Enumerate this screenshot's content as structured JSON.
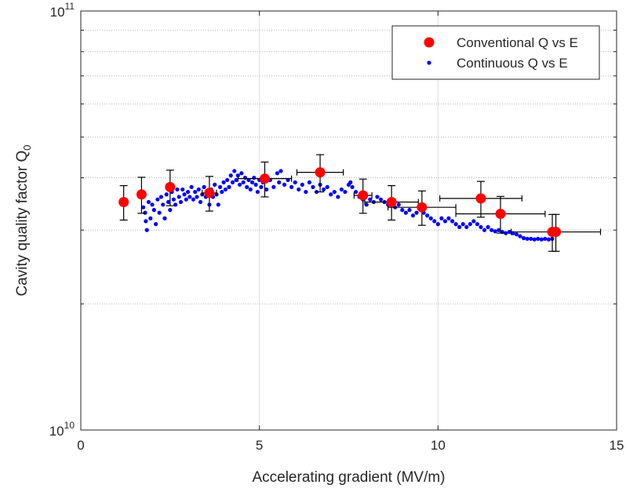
{
  "chart_data": {
    "type": "scatter",
    "title": "",
    "xlabel": "Accelerating gradient (MV/m)",
    "ylabel": "Cavity quality factor Q",
    "ylabel_subscript": "0",
    "xlim": [
      0,
      15
    ],
    "ylim": [
      10000000000.0,
      100000000000.0
    ],
    "yscale": "log",
    "x_ticks": [
      0,
      5,
      10,
      15
    ],
    "x_tick_labels": [
      "0",
      "5",
      "10",
      "15"
    ],
    "y_tick_labels": [
      {
        "value": 10000000000.0,
        "base": "10",
        "exp": "10"
      },
      {
        "value": 100000000000.0,
        "base": "10",
        "exp": "11"
      }
    ],
    "grid": true,
    "legend_position": "top-right",
    "series": [
      {
        "name": "Conventional Q vs E",
        "color": "#ff0000",
        "marker": "large-dot",
        "points": [
          {
            "x": 1.2,
            "y": 35000000000.0,
            "xerr": 0,
            "yerr": 3300000000.0
          },
          {
            "x": 1.7,
            "y": 36500000000.0,
            "xerr": 0,
            "yerr": 3600000000.0
          },
          {
            "x": 2.5,
            "y": 38000000000.0,
            "xerr": 0,
            "yerr": 3700000000.0
          },
          {
            "x": 3.6,
            "y": 36800000000.0,
            "xerr": 0.2,
            "yerr": 3500000000.0
          },
          {
            "x": 5.15,
            "y": 39800000000.0,
            "xerr": 0.75,
            "yerr": 3800000000.0
          },
          {
            "x": 6.7,
            "y": 41200000000.0,
            "xerr": 0.65,
            "yerr": 4200000000.0
          },
          {
            "x": 7.9,
            "y": 36300000000.0,
            "xerr": 0.25,
            "yerr": 3400000000.0
          },
          {
            "x": 8.7,
            "y": 35000000000.0,
            "xerr": 0.75,
            "yerr": 3300000000.0
          },
          {
            "x": 9.55,
            "y": 34000000000.0,
            "xerr": 0.95,
            "yerr": 3200000000.0
          },
          {
            "x": 11.2,
            "y": 35700000000.0,
            "xerr": 1.15,
            "yerr": 3500000000.0
          },
          {
            "x": 11.75,
            "y": 32800000000.0,
            "xerr": 1.25,
            "yerr": 3300000000.0
          },
          {
            "x": 13.2,
            "y": 29700000000.0,
            "xerr": 0,
            "yerr": 3000000000.0
          },
          {
            "x": 13.3,
            "y": 29700000000.0,
            "xerr": 1.25,
            "yerr": 3000000000.0
          }
        ]
      },
      {
        "name": "Continuous Q vs E",
        "color": "#0000ff",
        "marker": "small-dot",
        "points": [
          [
            1.75,
            34000000000.0
          ],
          [
            1.8,
            33000000000.0
          ],
          [
            1.82,
            31500000000.0
          ],
          [
            1.85,
            30000000000.0
          ],
          [
            1.9,
            35000000000.0
          ],
          [
            1.95,
            32000000000.0
          ],
          [
            2.0,
            34500000000.0
          ],
          [
            2.05,
            33500000000.0
          ],
          [
            2.1,
            31000000000.0
          ],
          [
            2.15,
            35500000000.0
          ],
          [
            2.2,
            33000000000.0
          ],
          [
            2.25,
            36000000000.0
          ],
          [
            2.3,
            34500000000.0
          ],
          [
            2.35,
            32000000000.0
          ],
          [
            2.4,
            36500000000.0
          ],
          [
            2.45,
            35000000000.0
          ],
          [
            2.5,
            33500000000.0
          ],
          [
            2.55,
            37000000000.0
          ],
          [
            2.6,
            35500000000.0
          ],
          [
            2.65,
            34500000000.0
          ],
          [
            2.7,
            37500000000.0
          ],
          [
            2.75,
            36000000000.0
          ],
          [
            2.8,
            35000000000.0
          ],
          [
            2.85,
            37500000000.0
          ],
          [
            2.9,
            36500000000.0
          ],
          [
            2.95,
            35500000000.0
          ],
          [
            3.0,
            37000000000.0
          ],
          [
            3.05,
            36000000000.0
          ],
          [
            3.1,
            38000000000.0
          ],
          [
            3.15,
            35500000000.0
          ],
          [
            3.2,
            37000000000.0
          ],
          [
            3.25,
            36000000000.0
          ],
          [
            3.3,
            37500000000.0
          ],
          [
            3.35,
            35000000000.0
          ],
          [
            3.4,
            36500000000.0
          ],
          [
            3.45,
            38000000000.0
          ],
          [
            3.5,
            36000000000.0
          ],
          [
            3.55,
            37000000000.0
          ],
          [
            3.6,
            34500000000.0
          ],
          [
            3.65,
            37500000000.0
          ],
          [
            3.7,
            36000000000.0
          ],
          [
            3.75,
            38500000000.0
          ],
          [
            3.8,
            36500000000.0
          ],
          [
            3.85,
            34500000000.0
          ],
          [
            3.9,
            38000000000.0
          ],
          [
            3.95,
            37000000000.0
          ],
          [
            4.0,
            39000000000.0
          ],
          [
            4.05,
            37500000000.0
          ],
          [
            4.1,
            39500000000.0
          ],
          [
            4.15,
            38000000000.0
          ],
          [
            4.2,
            40500000000.0
          ],
          [
            4.25,
            39000000000.0
          ],
          [
            4.3,
            41500000000.0
          ],
          [
            4.35,
            39500000000.0
          ],
          [
            4.4,
            40500000000.0
          ],
          [
            4.45,
            38500000000.0
          ],
          [
            4.5,
            41000000000.0
          ],
          [
            4.55,
            39000000000.0
          ],
          [
            4.6,
            40000000000.0
          ],
          [
            4.65,
            38000000000.0
          ],
          [
            4.7,
            39500000000.0
          ],
          [
            4.75,
            37500000000.0
          ],
          [
            4.8,
            39000000000.0
          ],
          [
            4.85,
            40000000000.0
          ],
          [
            4.9,
            38500000000.0
          ],
          [
            4.95,
            37000000000.0
          ],
          [
            5.0,
            39500000000.0
          ],
          [
            5.05,
            38000000000.0
          ],
          [
            5.1,
            39000000000.0
          ],
          [
            5.2,
            37500000000.0
          ],
          [
            5.3,
            39500000000.0
          ],
          [
            5.4,
            38000000000.0
          ],
          [
            5.5,
            41000000000.0
          ],
          [
            5.55,
            39000000000.0
          ],
          [
            5.6,
            41500000000.0
          ],
          [
            5.7,
            38500000000.0
          ],
          [
            5.8,
            39500000000.0
          ],
          [
            5.9,
            38000000000.0
          ],
          [
            6.0,
            39000000000.0
          ],
          [
            6.1,
            37500000000.0
          ],
          [
            6.2,
            38500000000.0
          ],
          [
            6.3,
            37000000000.0
          ],
          [
            6.4,
            39000000000.0
          ],
          [
            6.5,
            38000000000.0
          ],
          [
            6.6,
            37000000000.0
          ],
          [
            6.7,
            38500000000.0
          ],
          [
            6.8,
            37500000000.0
          ],
          [
            6.9,
            38000000000.0
          ],
          [
            7.0,
            36500000000.0
          ],
          [
            7.1,
            37000000000.0
          ],
          [
            7.2,
            36000000000.0
          ],
          [
            7.3,
            37500000000.0
          ],
          [
            7.4,
            37000000000.0
          ],
          [
            7.5,
            38500000000.0
          ],
          [
            7.55,
            39000000000.0
          ],
          [
            7.6,
            38000000000.0
          ],
          [
            7.7,
            37000000000.0
          ],
          [
            7.8,
            36000000000.0
          ],
          [
            7.9,
            35500000000.0
          ],
          [
            8.0,
            34500000000.0
          ],
          [
            8.1,
            35500000000.0
          ],
          [
            8.2,
            35000000000.0
          ],
          [
            8.3,
            36000000000.0
          ],
          [
            8.4,
            35500000000.0
          ],
          [
            8.5,
            35000000000.0
          ],
          [
            8.6,
            34500000000.0
          ],
          [
            8.7,
            35000000000.0
          ],
          [
            8.8,
            34000000000.0
          ],
          [
            8.9,
            34500000000.0
          ],
          [
            9.0,
            33500000000.0
          ],
          [
            9.1,
            33000000000.0
          ],
          [
            9.2,
            33500000000.0
          ],
          [
            9.3,
            32500000000.0
          ],
          [
            9.4,
            33000000000.0
          ],
          [
            9.5,
            34000000000.0
          ],
          [
            9.6,
            33000000000.0
          ],
          [
            9.7,
            32500000000.0
          ],
          [
            9.8,
            32000000000.0
          ],
          [
            9.9,
            31500000000.0
          ],
          [
            10.0,
            31000000000.0
          ],
          [
            10.1,
            32000000000.0
          ],
          [
            10.2,
            31500000000.0
          ],
          [
            10.3,
            32000000000.0
          ],
          [
            10.4,
            31500000000.0
          ],
          [
            10.5,
            31000000000.0
          ],
          [
            10.6,
            30500000000.0
          ],
          [
            10.7,
            31000000000.0
          ],
          [
            10.8,
            30500000000.0
          ],
          [
            10.9,
            31000000000.0
          ],
          [
            11.0,
            31500000000.0
          ],
          [
            11.1,
            31000000000.0
          ],
          [
            11.2,
            30500000000.0
          ],
          [
            11.3,
            30000000000.0
          ],
          [
            11.4,
            30500000000.0
          ],
          [
            11.5,
            30000000000.0
          ],
          [
            11.6,
            29800000000.0
          ],
          [
            11.7,
            30000000000.0
          ],
          [
            11.8,
            29700000000.0
          ],
          [
            11.9,
            29500000000.0
          ],
          [
            12.0,
            29700000000.0
          ],
          [
            12.1,
            29500000000.0
          ],
          [
            12.2,
            29300000000.0
          ],
          [
            12.3,
            29000000000.0
          ],
          [
            12.4,
            28700000000.0
          ],
          [
            12.5,
            28600000000.0
          ],
          [
            12.6,
            28600000000.0
          ],
          [
            12.7,
            28500000000.0
          ],
          [
            12.8,
            28600000000.0
          ],
          [
            12.9,
            28500000000.0
          ],
          [
            13.0,
            28600000000.0
          ],
          [
            13.1,
            28500000000.0
          ],
          [
            13.2,
            28600000000.0
          ]
        ]
      }
    ]
  }
}
